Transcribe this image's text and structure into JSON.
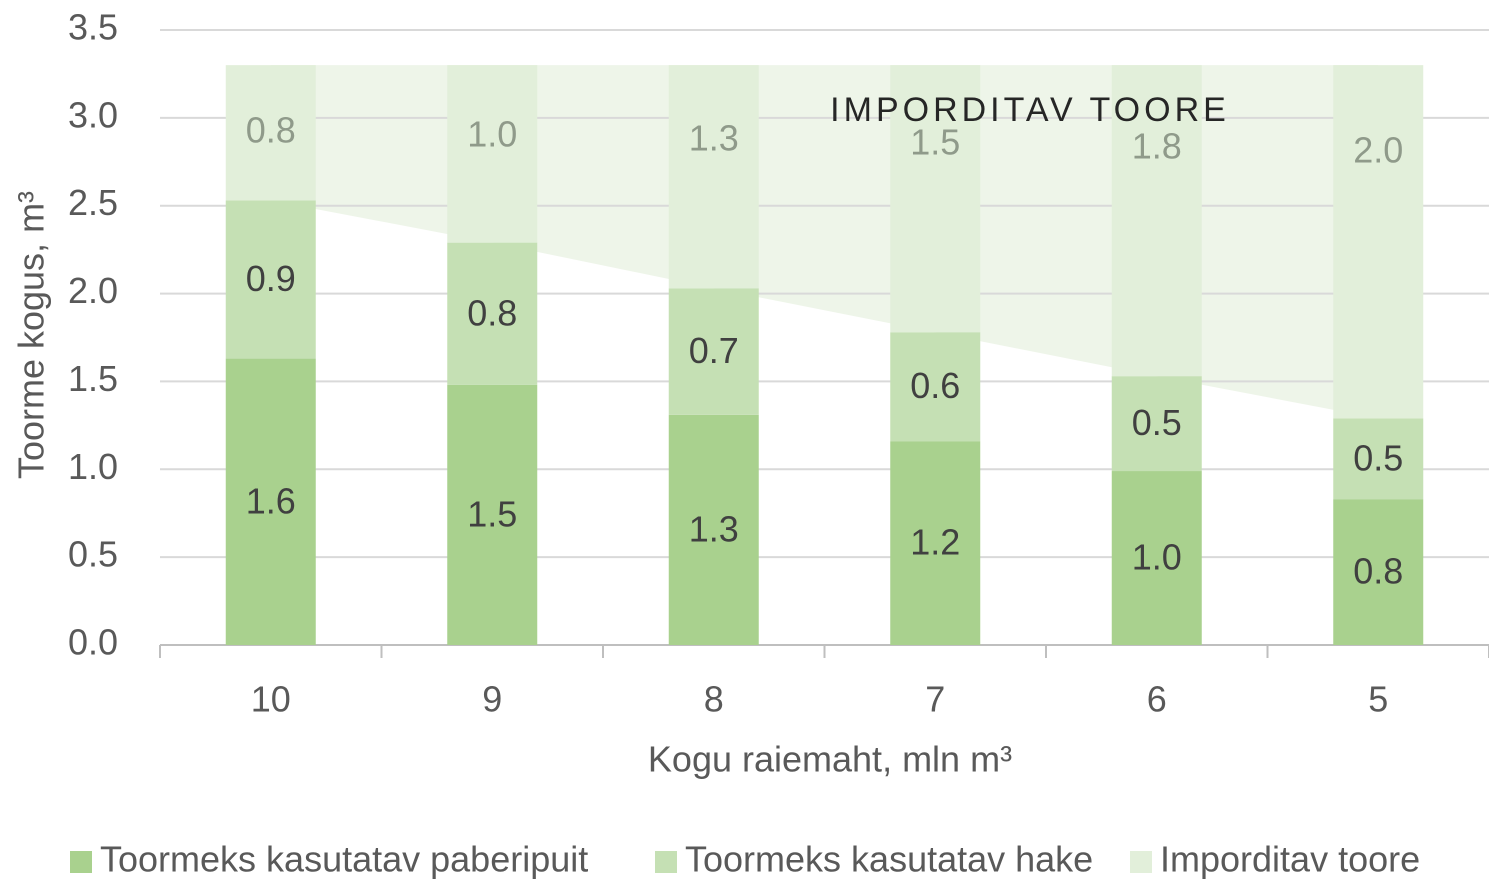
{
  "chart_data": {
    "type": "stacked_bar",
    "annotation": "IMPORDITAV TOORE",
    "x_label": "Kogu raiemaht, mln m³",
    "y_label": "Toorme kogus, m³",
    "categories": [
      "10",
      "9",
      "8",
      "7",
      "6",
      "5"
    ],
    "series": [
      {
        "name": "Toormeks kasutatav paberipuit",
        "color": "#a9d18e",
        "label_color": "#404040",
        "values": [
          1.63,
          1.48,
          1.31,
          1.16,
          0.99,
          0.83
        ],
        "value_labels": [
          "1.6",
          "1.5",
          "1.3",
          "1.2",
          "1.0",
          "0.8"
        ]
      },
      {
        "name": "Toormeks kasutatav hake",
        "color": "#c5e0b4",
        "label_color": "#404040",
        "values": [
          0.9,
          0.81,
          0.72,
          0.62,
          0.54,
          0.46
        ],
        "value_labels": [
          "0.9",
          "0.8",
          "0.7",
          "0.6",
          "0.5",
          "0.5"
        ]
      },
      {
        "name": "Imporditav toore",
        "color": "#e2efda",
        "label_color": "#8f9a8a",
        "values": [
          0.77,
          1.01,
          1.27,
          1.52,
          1.77,
          2.01
        ],
        "value_labels": [
          "0.8",
          "1.0",
          "1.3",
          "1.5",
          "1.8",
          "2.0"
        ]
      }
    ],
    "ylim": [
      0,
      3.5
    ],
    "yticks": [
      {
        "value": 0,
        "label": "0.0"
      },
      0.5,
      {
        "value": 1,
        "label": "1.0"
      },
      1.5,
      {
        "value": 2,
        "label": "2.0"
      },
      2.5,
      {
        "value": 3,
        "label": "3.0"
      },
      3.5
    ],
    "grid": true,
    "legend": "bottom"
  }
}
